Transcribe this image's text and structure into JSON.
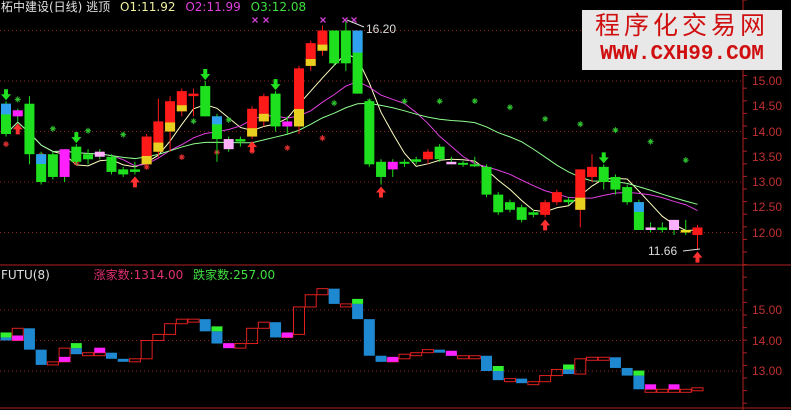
{
  "header": {
    "stock_title": "柘中建设(日线) 逃顶",
    "o1": "O1:11.92",
    "o2": "O2:11.99",
    "o3": "O3:12.08"
  },
  "colors": {
    "title": "#e0e0e0",
    "o1": "#f0f0a0",
    "o2": "#e040e0",
    "o3": "#40e040",
    "up": "#ff2020",
    "down": "#20e020",
    "axis": "#c03030"
  },
  "watermark": {
    "line1": "程序化交易网",
    "line2": "WWW.CXH99.COM"
  },
  "main_axis": [
    "15.00",
    "14.50",
    "14.00",
    "13.50",
    "13.00",
    "12.50",
    "12.00"
  ],
  "annotations": {
    "high": "16.20",
    "low": "11.66"
  },
  "sub_panel": {
    "title": "FUTU(8)",
    "rise": "涨家数:1314.00",
    "fall": "跌家数:257.00",
    "axis": [
      "15.00",
      "14.00",
      "13.00"
    ]
  },
  "chart_data": {
    "type": "candlestick",
    "candles": [
      [
        14.55,
        14.6,
        13.9,
        13.95,
        "g"
      ],
      [
        14.3,
        14.45,
        14.2,
        14.42,
        "m"
      ],
      [
        14.55,
        14.7,
        13.35,
        13.55,
        "g"
      ],
      [
        13.55,
        13.6,
        12.95,
        13.0,
        "g"
      ],
      [
        13.55,
        13.6,
        13.05,
        13.1,
        "g"
      ],
      [
        13.1,
        13.65,
        13.0,
        13.65,
        "m"
      ],
      [
        13.7,
        13.75,
        13.35,
        13.4,
        "g"
      ],
      [
        13.55,
        13.65,
        13.35,
        13.45,
        "g"
      ],
      [
        13.6,
        13.65,
        13.45,
        13.5,
        "p"
      ],
      [
        13.5,
        13.55,
        13.15,
        13.2,
        "g"
      ],
      [
        13.25,
        13.3,
        13.1,
        13.15,
        "g"
      ],
      [
        13.25,
        13.4,
        13.15,
        13.2,
        "g"
      ],
      [
        13.35,
        13.95,
        13.3,
        13.9,
        "r"
      ],
      [
        13.6,
        14.65,
        13.5,
        14.2,
        "r"
      ],
      [
        14.0,
        14.7,
        13.6,
        14.6,
        "r"
      ],
      [
        14.4,
        14.85,
        14.3,
        14.8,
        "r"
      ],
      [
        14.7,
        14.85,
        14.3,
        14.75,
        "r"
      ],
      [
        14.9,
        15.0,
        14.3,
        14.3,
        "g"
      ],
      [
        14.3,
        14.35,
        13.4,
        13.85,
        "g"
      ],
      [
        13.85,
        13.9,
        13.6,
        13.65,
        "p"
      ],
      [
        13.8,
        13.9,
        13.7,
        13.85,
        "g"
      ],
      [
        13.9,
        14.5,
        13.85,
        14.45,
        "r"
      ],
      [
        14.2,
        14.75,
        14.1,
        14.7,
        "r"
      ],
      [
        14.75,
        14.8,
        14.0,
        14.1,
        "g"
      ],
      [
        14.1,
        14.3,
        13.95,
        14.2,
        "m"
      ],
      [
        14.1,
        15.3,
        13.95,
        15.25,
        "r"
      ],
      [
        15.3,
        15.8,
        15.2,
        15.75,
        "r"
      ],
      [
        15.6,
        16.1,
        15.5,
        16.0,
        "r"
      ],
      [
        16.0,
        16.0,
        15.3,
        15.35,
        "g"
      ],
      [
        16.0,
        16.2,
        15.2,
        15.35,
        "g"
      ],
      [
        16.0,
        16.0,
        14.75,
        14.75,
        "g"
      ],
      [
        14.6,
        14.65,
        13.3,
        13.35,
        "g"
      ],
      [
        13.4,
        13.45,
        12.95,
        13.1,
        "g"
      ],
      [
        13.4,
        13.45,
        13.1,
        13.25,
        "m"
      ],
      [
        13.4,
        13.45,
        13.3,
        13.4,
        "g"
      ],
      [
        13.4,
        13.5,
        13.35,
        13.45,
        "g"
      ],
      [
        13.45,
        13.65,
        13.35,
        13.6,
        "r"
      ],
      [
        13.7,
        13.75,
        13.4,
        13.45,
        "g"
      ],
      [
        13.4,
        13.5,
        13.35,
        13.35,
        "p"
      ],
      [
        13.38,
        13.42,
        13.3,
        13.35,
        "g"
      ],
      [
        13.35,
        13.5,
        13.3,
        13.32,
        "g"
      ],
      [
        13.3,
        13.35,
        12.7,
        12.75,
        "g"
      ],
      [
        12.75,
        12.8,
        12.35,
        12.4,
        "g"
      ],
      [
        12.6,
        12.65,
        12.4,
        12.45,
        "g"
      ],
      [
        12.5,
        12.55,
        12.2,
        12.25,
        "g"
      ],
      [
        12.4,
        12.45,
        12.3,
        12.35,
        "g"
      ],
      [
        12.35,
        12.65,
        12.3,
        12.6,
        "r"
      ],
      [
        12.6,
        12.85,
        12.55,
        12.8,
        "r"
      ],
      [
        12.6,
        12.7,
        12.55,
        12.65,
        "g"
      ],
      [
        12.45,
        13.25,
        12.1,
        13.25,
        "r"
      ],
      [
        13.1,
        13.55,
        13.0,
        13.3,
        "r"
      ],
      [
        13.0,
        13.35,
        12.85,
        13.3,
        "g"
      ],
      [
        13.1,
        13.15,
        12.75,
        12.85,
        "g"
      ],
      [
        12.9,
        12.95,
        12.55,
        12.6,
        "g"
      ],
      [
        12.6,
        12.65,
        12.05,
        12.05,
        "g"
      ],
      [
        12.1,
        12.2,
        12.0,
        12.05,
        "p"
      ],
      [
        12.1,
        12.2,
        12.0,
        12.05,
        "g"
      ],
      [
        12.25,
        12.25,
        11.95,
        12.05,
        "p"
      ],
      [
        12.05,
        12.25,
        11.95,
        12.0,
        "y"
      ],
      [
        11.95,
        12.15,
        11.66,
        12.1,
        "r"
      ]
    ],
    "futu": [
      14.0,
      14.4,
      13.7,
      13.2,
      13.3,
      13.75,
      13.55,
      13.6,
      13.6,
      13.4,
      13.35,
      13.4,
      14.0,
      14.2,
      14.55,
      14.7,
      14.7,
      14.3,
      13.9,
      13.75,
      13.9,
      14.4,
      14.6,
      14.1,
      14.2,
      15.1,
      15.5,
      15.7,
      15.2,
      15.2,
      14.7,
      13.5,
      13.3,
      13.4,
      13.55,
      13.6,
      13.7,
      13.6,
      13.5,
      13.5,
      13.5,
      13.0,
      12.7,
      12.75,
      12.6,
      12.65,
      12.85,
      13.05,
      12.9,
      13.4,
      13.45,
      13.45,
      13.1,
      12.85,
      12.4,
      12.4,
      12.4,
      12.4,
      12.4,
      12.45
    ],
    "down_arrows": [
      0,
      6,
      17,
      23,
      51
    ],
    "up_arrows": [
      1,
      11,
      21,
      32,
      46,
      59
    ]
  }
}
